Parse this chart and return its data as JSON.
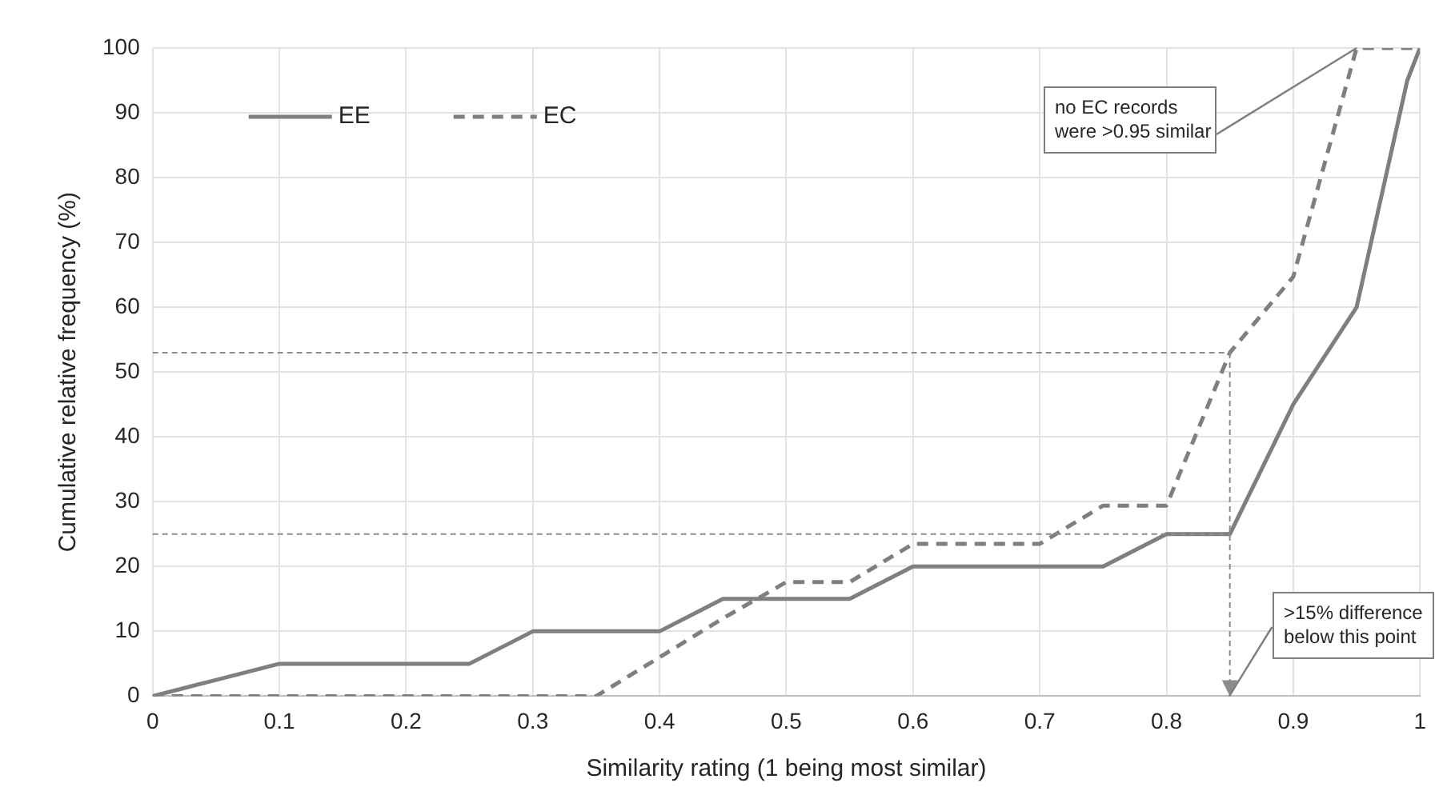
{
  "chart_data": {
    "type": "line",
    "xlabel": "Similarity rating (1 being most similar)",
    "ylabel": "Cumulative relative frequency (%)",
    "series": [
      {
        "name": "EE",
        "color": "#7f7f7f",
        "line_style": "solid",
        "x": [
          0,
          0.1,
          0.25,
          0.3,
          0.4,
          0.45,
          0.55,
          0.6,
          0.75,
          0.8,
          0.85,
          0.9,
          0.95,
          0.99,
          1
        ],
        "values": [
          0,
          5,
          5,
          10,
          10,
          15,
          15,
          20,
          20,
          25,
          25,
          45,
          60,
          95,
          100
        ]
      },
      {
        "name": "EC",
        "color": "#7f7f7f",
        "line_style": "dashed",
        "x": [
          0,
          0.35,
          0.4,
          0.45,
          0.5,
          0.55,
          0.6,
          0.7,
          0.75,
          0.8,
          0.85,
          0.9,
          0.95,
          1
        ],
        "values": [
          0,
          0,
          6,
          12,
          17.6,
          17.6,
          23.5,
          23.5,
          29.4,
          29.4,
          53,
          64.7,
          100,
          100
        ]
      }
    ],
    "xlim": [
      0,
      1
    ],
    "xticks": [
      0,
      0.1,
      0.2,
      0.3,
      0.4,
      0.5,
      0.6,
      0.7,
      0.8,
      0.9,
      1
    ],
    "ylim": [
      0,
      100
    ],
    "yticks": [
      0,
      10,
      20,
      30,
      40,
      50,
      60,
      70,
      80,
      90,
      100
    ],
    "ref_lines": [
      {
        "axis": "y",
        "value": 53,
        "color": "#8c8c8c",
        "line_style": "dashed"
      },
      {
        "axis": "y",
        "value": 25,
        "color": "#8c8c8c",
        "line_style": "dashed"
      },
      {
        "axis": "x",
        "value": 0.85,
        "color": "#8c8c8c",
        "line_style": "dashed"
      }
    ],
    "annotations": [
      {
        "text": "no EC records were >0.95 similar",
        "x": 0.95,
        "y": 100
      },
      ">15% difference below this point"
    ],
    "grid": true,
    "legend": "top left",
    "marker": "none"
  }
}
